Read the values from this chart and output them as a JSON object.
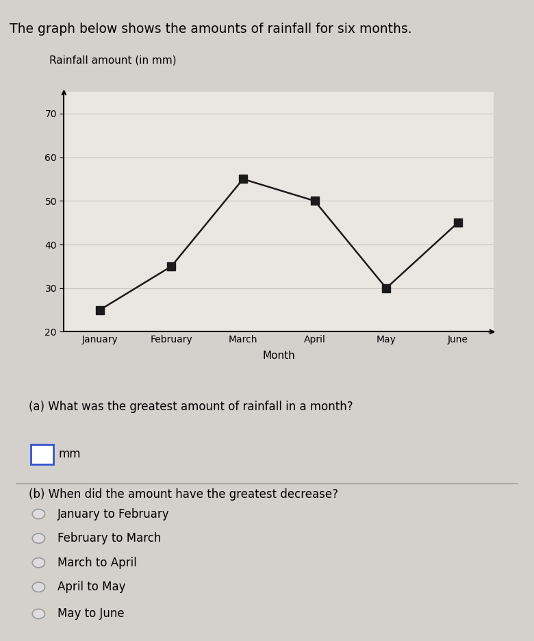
{
  "title": "The graph below shows the amounts of rainfall for six months.",
  "chart_ylabel": "Rainfall amount (in mm)",
  "chart_xlabel": "Month",
  "months": [
    "January",
    "February",
    "March",
    "April",
    "May",
    "June"
  ],
  "rainfall": [
    25,
    35,
    55,
    50,
    30,
    45
  ],
  "ylim_min": 20,
  "ylim_max": 75,
  "yticks": [
    20,
    30,
    40,
    50,
    60,
    70
  ],
  "line_color": "#1a1a1a",
  "marker_color": "#1a1a1a",
  "marker_style": "s",
  "marker_size": 7,
  "page_bg": "#d4d0cc",
  "chart_box_bg": "#f0ece8",
  "chart_plot_bg": "#eae6e2",
  "qa_box_bg": "#ffffff",
  "question_a": "(a) What was the greatest amount of rainfall in a month?",
  "question_b": "(b) When did the amount have the greatest decrease?",
  "options": [
    "January to February",
    "February to March",
    "March to April",
    "April to May",
    "May to June"
  ],
  "answer_box_text": "mm",
  "grid_color": "#c8c4c0",
  "chart_border_color": "#888880",
  "qa_border_color": "#888880"
}
